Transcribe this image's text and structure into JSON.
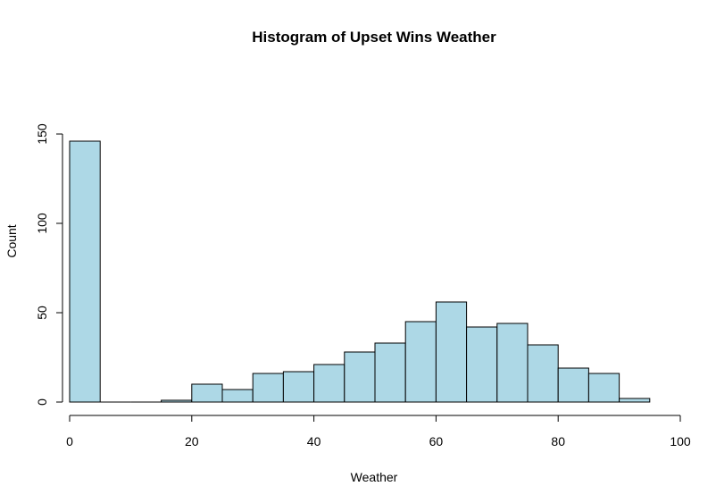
{
  "chart_data": {
    "type": "bar",
    "title": "Histogram of Upset Wins Weather",
    "xlabel": "Weather",
    "ylabel": "Count",
    "bins": [
      {
        "start": 0,
        "end": 5,
        "count": 146
      },
      {
        "start": 5,
        "end": 10,
        "count": 0
      },
      {
        "start": 10,
        "end": 15,
        "count": 0
      },
      {
        "start": 15,
        "end": 20,
        "count": 1
      },
      {
        "start": 20,
        "end": 25,
        "count": 10
      },
      {
        "start": 25,
        "end": 30,
        "count": 7
      },
      {
        "start": 30,
        "end": 35,
        "count": 16
      },
      {
        "start": 35,
        "end": 40,
        "count": 17
      },
      {
        "start": 40,
        "end": 45,
        "count": 21
      },
      {
        "start": 45,
        "end": 50,
        "count": 28
      },
      {
        "start": 50,
        "end": 55,
        "count": 33
      },
      {
        "start": 55,
        "end": 60,
        "count": 45
      },
      {
        "start": 60,
        "end": 65,
        "count": 56
      },
      {
        "start": 65,
        "end": 70,
        "count": 42
      },
      {
        "start": 70,
        "end": 75,
        "count": 44
      },
      {
        "start": 75,
        "end": 80,
        "count": 32
      },
      {
        "start": 80,
        "end": 85,
        "count": 19
      },
      {
        "start": 85,
        "end": 90,
        "count": 16
      },
      {
        "start": 90,
        "end": 95,
        "count": 2
      }
    ],
    "xlim": [
      0,
      100
    ],
    "ylim": [
      0,
      150
    ],
    "xticks": [
      0,
      20,
      40,
      60,
      80,
      100
    ],
    "yticks": [
      0,
      50,
      100,
      150
    ],
    "bar_color": "#add8e6",
    "grid": false
  }
}
